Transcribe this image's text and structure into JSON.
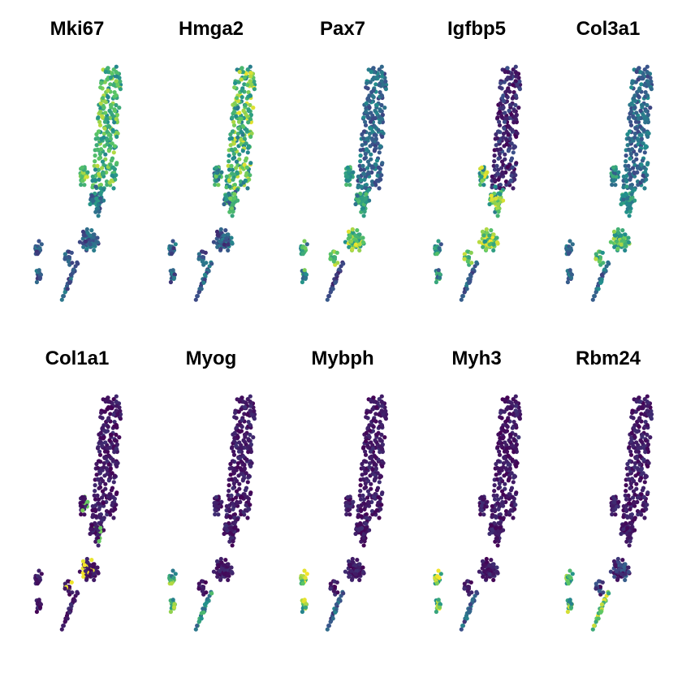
{
  "chart_data": [
    {
      "type": "scatter",
      "title": "Mki67",
      "pattern": "high_top"
    },
    {
      "type": "scatter",
      "title": "Hmga2",
      "pattern": "high_upper_mid"
    },
    {
      "type": "scatter",
      "title": "Pax7",
      "pattern": "high_mid_low"
    },
    {
      "type": "scatter",
      "title": "Igfbp5",
      "pattern": "high_mid"
    },
    {
      "type": "scatter",
      "title": "Col3a1",
      "pattern": "mid_low_teal"
    },
    {
      "type": "scatter",
      "title": "Col1a1",
      "pattern": "mostly_low_spot"
    },
    {
      "type": "scatter",
      "title": "Myog",
      "pattern": "left_cluster_tail"
    },
    {
      "type": "scatter",
      "title": "Mybph",
      "pattern": "left_cluster"
    },
    {
      "type": "scatter",
      "title": "Myh3",
      "pattern": "left_cluster"
    },
    {
      "type": "scatter",
      "title": "Rbm24",
      "pattern": "left_cluster_tail_strong"
    }
  ],
  "colormap": [
    "#440154",
    "#3b528b",
    "#21908c",
    "#5dc863",
    "#fde725"
  ]
}
